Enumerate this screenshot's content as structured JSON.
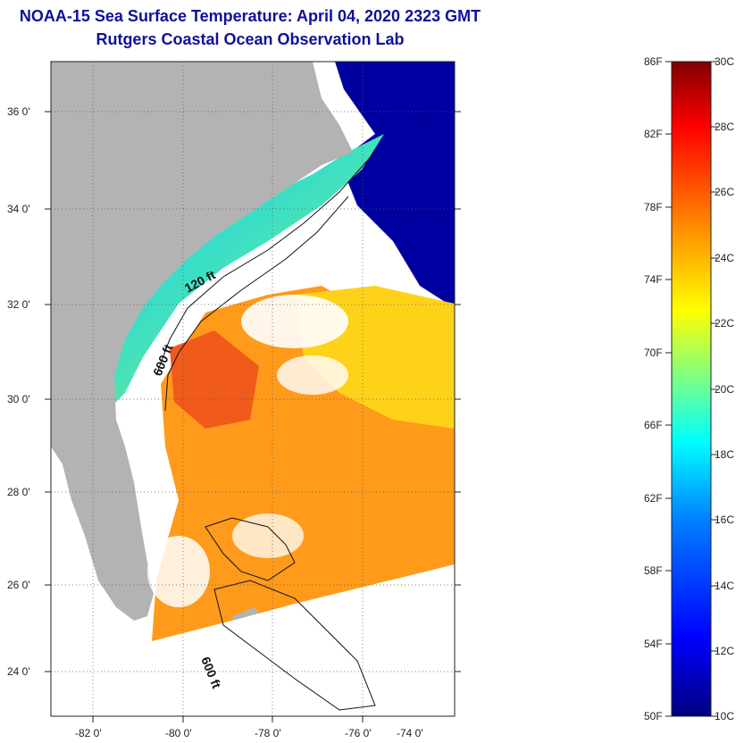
{
  "title": {
    "line1": "NOAA-15 Sea Surface Temperature:  April 04, 2020 2323 GMT",
    "line2": "Rutgers Coastal Ocean Observation Lab"
  },
  "map": {
    "lat_labels": [
      "36 0'",
      "34 0'",
      "32 0'",
      "30 0'",
      "28 0'",
      "26 0'",
      "24 0'"
    ],
    "lon_labels": [
      "-82 0'",
      "-80 0'",
      "-78 0'",
      "-76 0'",
      "-74 0'"
    ],
    "contour_labels": [
      "120 ft",
      "600 ft",
      "600 ft"
    ],
    "land_color": "#b3b3b3",
    "cloud_color": "#ffffff"
  },
  "colorbar": {
    "f_labels": [
      "86F",
      "82F",
      "78F",
      "74F",
      "70F",
      "66F",
      "62F",
      "58F",
      "54F",
      "50F"
    ],
    "c_labels": [
      "30C",
      "28C",
      "26C",
      "24C",
      "22C",
      "20C",
      "18C",
      "16C",
      "14C",
      "12C",
      "10C"
    ],
    "colors": [
      "#000080",
      "#0000ff",
      "#0080ff",
      "#00ffff",
      "#80ff80",
      "#ffff00",
      "#ff8000",
      "#ff0000",
      "#800000"
    ]
  }
}
